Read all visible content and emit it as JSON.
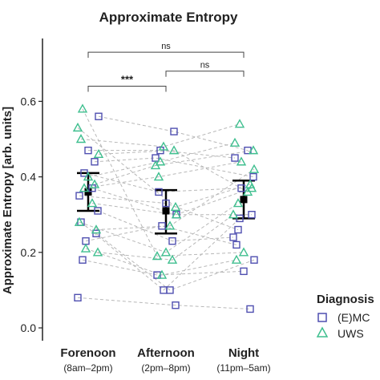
{
  "colors": {
    "emc": "#4f4fb0",
    "uws": "#3fbf8f",
    "pair_line": "#b8b8b8",
    "mean": "#000000"
  },
  "chart_data": {
    "type": "scatter",
    "title": "Approximate Entropy",
    "ylabel": "Approximate Entropy [arb. units]",
    "ylim": [
      -0.02,
      0.68
    ],
    "yticks": [
      "0.0",
      "0.2",
      "0.4",
      "0.6"
    ],
    "categories": [
      "Forenoon",
      "Afternoon",
      "Night"
    ],
    "category_sublabels": [
      "(8am–2pm)",
      "(2pm–8pm)",
      "(11pm–5am)"
    ],
    "legend": {
      "title": "Diagnosis",
      "entries": [
        "(E)MC",
        "UWS"
      ],
      "position": "right"
    },
    "grid": false,
    "series": [
      {
        "name": "(E)MC",
        "marker": "square",
        "subjects": [
          [
            0.08,
            0.06,
            0.05
          ],
          [
            0.18,
            0.14,
            0.15
          ],
          [
            0.25,
            0.1,
            0.18
          ],
          [
            0.23,
            0.27,
            0.22
          ],
          [
            0.31,
            0.23,
            0.24
          ],
          [
            0.35,
            0.33,
            0.26
          ],
          [
            0.37,
            0.3,
            0.3
          ],
          [
            0.41,
            0.36,
            0.37
          ],
          [
            0.44,
            0.45,
            0.4
          ],
          [
            0.47,
            0.47,
            0.45
          ],
          [
            0.56,
            0.52,
            0.47
          ],
          [
            0.28,
            0.1,
            0.29
          ]
        ]
      },
      {
        "name": "UWS",
        "marker": "triangle",
        "subjects": [
          [
            0.21,
            0.14,
            0.18
          ],
          [
            0.2,
            0.18,
            0.3
          ],
          [
            0.28,
            0.2,
            0.33
          ],
          [
            0.33,
            0.3,
            0.37
          ],
          [
            0.37,
            0.4,
            0.44
          ],
          [
            0.38,
            0.43,
            0.47
          ],
          [
            0.4,
            0.44,
            0.49
          ],
          [
            0.46,
            0.47,
            0.36
          ],
          [
            0.5,
            0.48,
            0.54
          ],
          [
            0.53,
            0.32,
            0.38
          ],
          [
            0.58,
            0.19,
            0.2
          ],
          [
            0.26,
            0.27,
            0.42
          ]
        ]
      }
    ],
    "summary": [
      {
        "mean": 0.36,
        "lower": 0.31,
        "upper": 0.41
      },
      {
        "mean": 0.31,
        "lower": 0.25,
        "upper": 0.365
      },
      {
        "mean": 0.34,
        "lower": 0.29,
        "upper": 0.39
      }
    ],
    "significance": [
      {
        "from": 0,
        "to": 1,
        "label": "***",
        "y": 0.64
      },
      {
        "from": 1,
        "to": 2,
        "label": "ns",
        "y": 0.68
      },
      {
        "from": 0,
        "to": 2,
        "label": "ns",
        "y": 0.73
      }
    ]
  }
}
